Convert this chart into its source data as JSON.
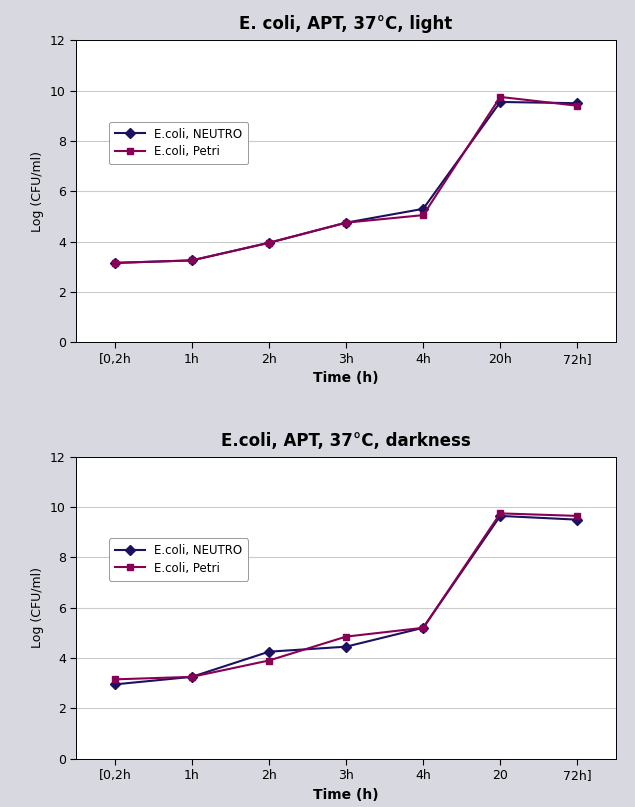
{
  "top": {
    "title": "E. coli, APT, 37°C, light",
    "neutro_y": [
      3.15,
      3.25,
      3.95,
      4.75,
      5.3,
      9.55,
      9.5
    ],
    "petri_y": [
      3.15,
      3.25,
      3.95,
      4.75,
      5.05,
      9.75,
      9.4
    ],
    "x_labels": [
      "[0,2h",
      "1h",
      "2h",
      "3h",
      "4h",
      "20h",
      "72h]"
    ]
  },
  "bottom": {
    "title": "E.coli, APT, 37°C, darkness",
    "neutro_y": [
      2.95,
      3.25,
      4.25,
      4.45,
      5.2,
      9.65,
      9.5
    ],
    "petri_y": [
      3.15,
      3.25,
      3.9,
      4.85,
      5.2,
      9.75,
      9.65
    ],
    "x_labels": [
      "[0,2h",
      "1h",
      "2h",
      "3h",
      "4h",
      "20",
      "72h]"
    ]
  },
  "neutro_color": "#1c1060",
  "petri_color": "#880055",
  "ylabel": "Log (CFU/ml)",
  "xlabel": "Time (h)",
  "ylim": [
    0,
    12
  ],
  "yticks": [
    0,
    2,
    4,
    6,
    8,
    10,
    12
  ],
  "legend_neutro": "E.coli, NEUTRO",
  "legend_petri": "E.coli, Petri",
  "fig_bg_color": "#d8d8e0",
  "plot_bg_color": "#ffffff",
  "grid_color": "#cccccc"
}
